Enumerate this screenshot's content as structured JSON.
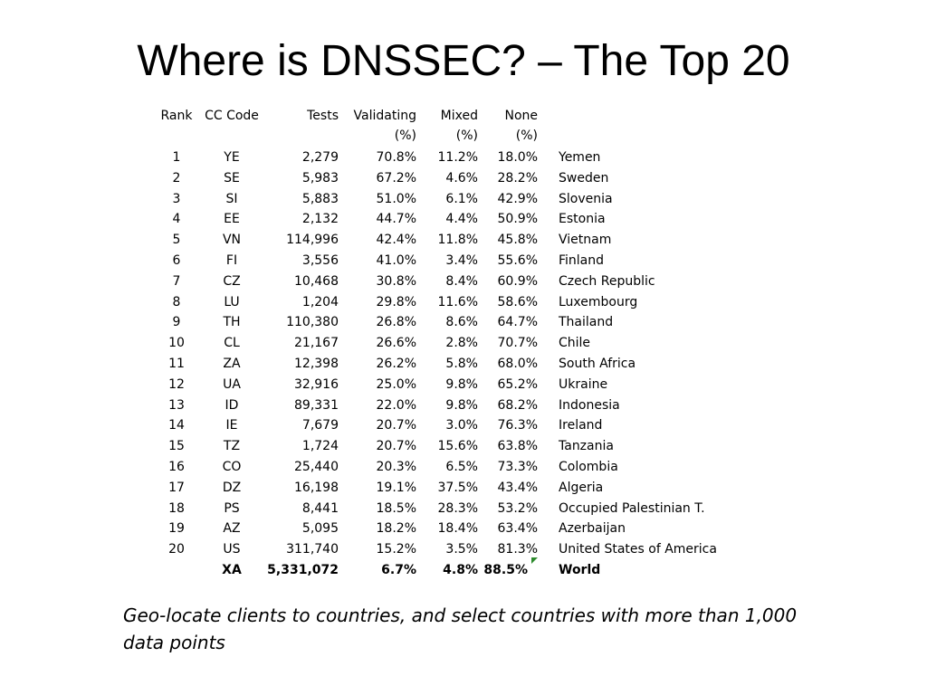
{
  "title": "Where is DNSSEC? – The Top 20",
  "table": {
    "headers": {
      "rank": "Rank",
      "cc": "CC Code",
      "tests": "Tests",
      "validating": "Validating",
      "validating_unit": "(%)",
      "mixed": "Mixed",
      "mixed_unit": "(%)",
      "none": "None",
      "none_unit": "(%)"
    },
    "rows": [
      {
        "rank": "1",
        "cc": "YE",
        "tests": "2,279",
        "validating": "70.8%",
        "mixed": "11.2%",
        "none": "18.0%",
        "country": "Yemen"
      },
      {
        "rank": "2",
        "cc": "SE",
        "tests": "5,983",
        "validating": "67.2%",
        "mixed": "4.6%",
        "none": "28.2%",
        "country": "Sweden"
      },
      {
        "rank": "3",
        "cc": "SI",
        "tests": "5,883",
        "validating": "51.0%",
        "mixed": "6.1%",
        "none": "42.9%",
        "country": "Slovenia"
      },
      {
        "rank": "4",
        "cc": "EE",
        "tests": "2,132",
        "validating": "44.7%",
        "mixed": "4.4%",
        "none": "50.9%",
        "country": "Estonia"
      },
      {
        "rank": "5",
        "cc": "VN",
        "tests": "114,996",
        "validating": "42.4%",
        "mixed": "11.8%",
        "none": "45.8%",
        "country": "Vietnam"
      },
      {
        "rank": "6",
        "cc": "FI",
        "tests": "3,556",
        "validating": "41.0%",
        "mixed": "3.4%",
        "none": "55.6%",
        "country": "Finland"
      },
      {
        "rank": "7",
        "cc": "CZ",
        "tests": "10,468",
        "validating": "30.8%",
        "mixed": "8.4%",
        "none": "60.9%",
        "country": "Czech Republic"
      },
      {
        "rank": "8",
        "cc": "LU",
        "tests": "1,204",
        "validating": "29.8%",
        "mixed": "11.6%",
        "none": "58.6%",
        "country": "Luxembourg"
      },
      {
        "rank": "9",
        "cc": "TH",
        "tests": "110,380",
        "validating": "26.8%",
        "mixed": "8.6%",
        "none": "64.7%",
        "country": "Thailand"
      },
      {
        "rank": "10",
        "cc": "CL",
        "tests": "21,167",
        "validating": "26.6%",
        "mixed": "2.8%",
        "none": "70.7%",
        "country": "Chile"
      },
      {
        "rank": "11",
        "cc": "ZA",
        "tests": "12,398",
        "validating": "26.2%",
        "mixed": "5.8%",
        "none": "68.0%",
        "country": "South Africa"
      },
      {
        "rank": "12",
        "cc": "UA",
        "tests": "32,916",
        "validating": "25.0%",
        "mixed": "9.8%",
        "none": "65.2%",
        "country": "Ukraine"
      },
      {
        "rank": "13",
        "cc": "ID",
        "tests": "89,331",
        "validating": "22.0%",
        "mixed": "9.8%",
        "none": "68.2%",
        "country": "Indonesia"
      },
      {
        "rank": "14",
        "cc": "IE",
        "tests": "7,679",
        "validating": "20.7%",
        "mixed": "3.0%",
        "none": "76.3%",
        "country": "Ireland"
      },
      {
        "rank": "15",
        "cc": "TZ",
        "tests": "1,724",
        "validating": "20.7%",
        "mixed": "15.6%",
        "none": "63.8%",
        "country": "Tanzania"
      },
      {
        "rank": "16",
        "cc": "CO",
        "tests": "25,440",
        "validating": "20.3%",
        "mixed": "6.5%",
        "none": "73.3%",
        "country": "Colombia"
      },
      {
        "rank": "17",
        "cc": "DZ",
        "tests": "16,198",
        "validating": "19.1%",
        "mixed": "37.5%",
        "none": "43.4%",
        "country": "Algeria"
      },
      {
        "rank": "18",
        "cc": "PS",
        "tests": "8,441",
        "validating": "18.5%",
        "mixed": "28.3%",
        "none": "53.2%",
        "country": "Occupied Palestinian T."
      },
      {
        "rank": "19",
        "cc": "AZ",
        "tests": "5,095",
        "validating": "18.2%",
        "mixed": "18.4%",
        "none": "63.4%",
        "country": "Azerbaijan"
      },
      {
        "rank": "20",
        "cc": "US",
        "tests": "311,740",
        "validating": "15.2%",
        "mixed": "3.5%",
        "none": "81.3%",
        "country": "United States of America"
      }
    ],
    "world": {
      "rank": "",
      "cc": "XA",
      "tests": "5,331,072",
      "validating": "6.7%",
      "mixed": "4.8%",
      "none": "88.5%",
      "country": "World"
    }
  },
  "caption": "Geo-locate clients to countries, and select countries with more than 1,000 data points",
  "colors": {
    "marker": "#2e8b2e"
  }
}
